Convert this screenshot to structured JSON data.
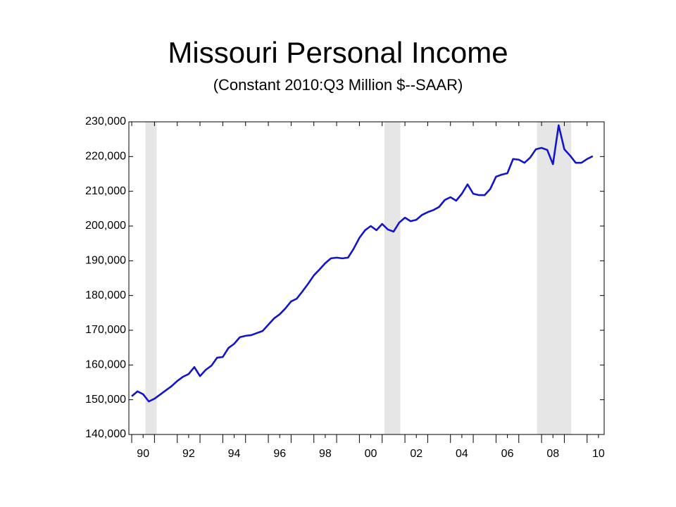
{
  "chart_data": {
    "type": "line",
    "title": "Missouri Personal Income",
    "subtitle": "(Constant 2010:Q3 Million $--SAAR)",
    "x": [
      1990,
      1990.25,
      1990.5,
      1990.75,
      1991,
      1991.25,
      1991.5,
      1991.75,
      1992,
      1992.25,
      1992.5,
      1992.75,
      1993,
      1993.25,
      1993.5,
      1993.75,
      1994,
      1994.25,
      1994.5,
      1994.75,
      1995,
      1995.25,
      1995.5,
      1995.75,
      1996,
      1996.25,
      1996.5,
      1996.75,
      1997,
      1997.25,
      1997.5,
      1997.75,
      1998,
      1998.25,
      1998.5,
      1998.75,
      1999,
      1999.25,
      1999.5,
      1999.75,
      2000,
      2000.25,
      2000.5,
      2000.75,
      2001,
      2001.25,
      2001.5,
      2001.75,
      2002,
      2002.25,
      2002.5,
      2002.75,
      2003,
      2003.25,
      2003.5,
      2003.75,
      2004,
      2004.25,
      2004.5,
      2004.75,
      2005,
      2005.25,
      2005.5,
      2005.75,
      2006,
      2006.25,
      2006.5,
      2006.75,
      2007,
      2007.25,
      2007.5,
      2007.75,
      2008,
      2008.25,
      2008.5,
      2008.75,
      2009,
      2009.25,
      2009.5,
      2009.75,
      2010,
      2010.25
    ],
    "series": [
      {
        "name": "Missouri Personal Income",
        "color": "#1414c8",
        "values": [
          151000,
          152400,
          151600,
          149500,
          150300,
          151500,
          152700,
          153900,
          155400,
          156600,
          157400,
          159400,
          156800,
          158600,
          159800,
          162100,
          162300,
          164900,
          166100,
          168000,
          168400,
          168600,
          169200,
          169800,
          171600,
          173400,
          174600,
          176300,
          178300,
          179100,
          181200,
          183400,
          185800,
          187500,
          189300,
          190700,
          190900,
          190700,
          190900,
          193500,
          196600,
          198800,
          200000,
          198800,
          200600,
          199000,
          198400,
          201000,
          202400,
          201400,
          201800,
          203200,
          204000,
          204600,
          205500,
          207500,
          208300,
          207300,
          209300,
          212000,
          209300,
          208900,
          208900,
          210700,
          214200,
          214800,
          215200,
          219300,
          219100,
          218200,
          219700,
          222100,
          222500,
          221900,
          217800,
          229000,
          222100,
          220300,
          218200,
          218200,
          219300,
          220100
        ]
      }
    ],
    "recessions": [
      [
        1990.6,
        1991.1
      ],
      [
        2001.1,
        2001.8
      ],
      [
        2007.8,
        2009.3
      ]
    ],
    "recession_color": "#e6e6e6",
    "xlim": [
      1989.875,
      2010.75
    ],
    "xticks": [
      {
        "value": 1990.5,
        "label": "90"
      },
      {
        "value": 1992.5,
        "label": "92"
      },
      {
        "value": 1994.5,
        "label": "94"
      },
      {
        "value": 1996.5,
        "label": "96"
      },
      {
        "value": 1998.5,
        "label": "98"
      },
      {
        "value": 2000.5,
        "label": "00"
      },
      {
        "value": 2002.5,
        "label": "02"
      },
      {
        "value": 2004.5,
        "label": "04"
      },
      {
        "value": 2006.5,
        "label": "06"
      },
      {
        "value": 2008.5,
        "label": "08"
      },
      {
        "value": 2010.5,
        "label": "10"
      }
    ],
    "ylim": [
      140000,
      230000
    ],
    "yticks": [
      {
        "value": 140000,
        "label": "140,000"
      },
      {
        "value": 150000,
        "label": "150,000"
      },
      {
        "value": 160000,
        "label": "160,000"
      },
      {
        "value": 170000,
        "label": "170,000"
      },
      {
        "value": 180000,
        "label": "180,000"
      },
      {
        "value": 190000,
        "label": "190,000"
      },
      {
        "value": 200000,
        "label": "200,000"
      },
      {
        "value": 210000,
        "label": "210,000"
      },
      {
        "value": 220000,
        "label": "220,000"
      },
      {
        "value": 230000,
        "label": "230,000"
      }
    ],
    "grid": false
  }
}
